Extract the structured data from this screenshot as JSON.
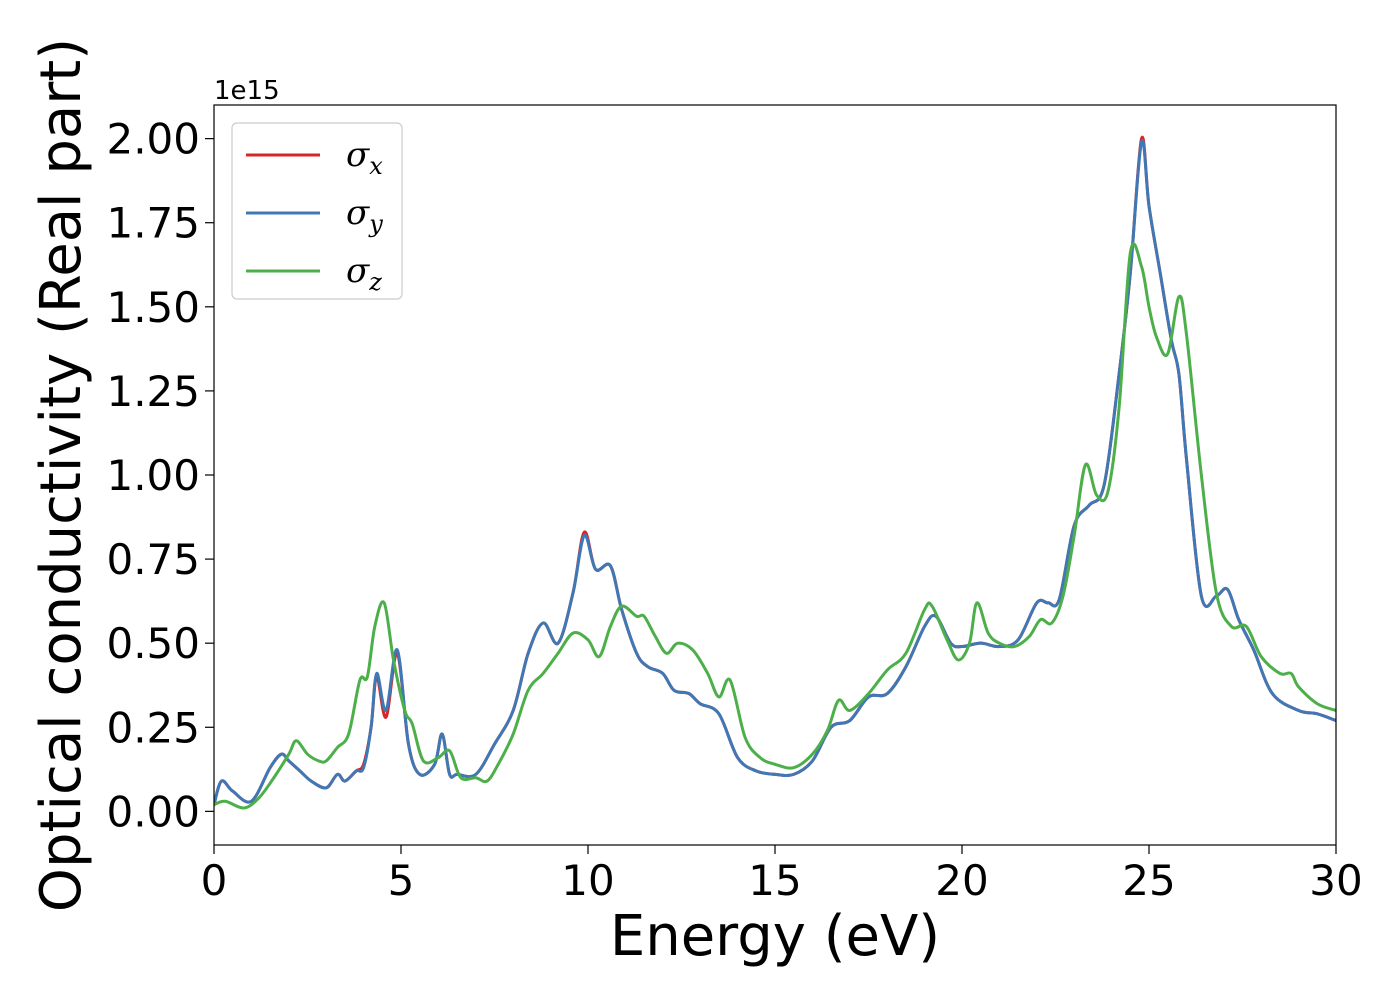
{
  "chart_data": {
    "type": "line",
    "title": "",
    "xlabel": "Energy (eV)",
    "ylabel": "Optical conductivity (Real part)",
    "y_offset_label": "1e15",
    "xlim": [
      0,
      30
    ],
    "ylim": [
      -0.1,
      2.1
    ],
    "x_ticks": [
      0,
      5,
      10,
      15,
      20,
      25,
      30
    ],
    "x_tick_labels": [
      "0",
      "5",
      "10",
      "15",
      "20",
      "25",
      "30"
    ],
    "y_ticks": [
      0,
      0.25,
      0.5,
      0.75,
      1.0,
      1.25,
      1.5,
      1.75,
      2.0
    ],
    "y_tick_labels": [
      "0.00",
      "0.25",
      "0.50",
      "0.75",
      "1.00",
      "1.25",
      "1.50",
      "1.75",
      "2.00"
    ],
    "grid": false,
    "legend_position": "top-left",
    "series": [
      {
        "name": "σx",
        "legend_symbol": "σ",
        "legend_subscript": "x",
        "color": "#d62728",
        "x": [
          0,
          0.2,
          0.5,
          1.0,
          1.5,
          1.8,
          2.0,
          2.3,
          2.6,
          3.0,
          3.3,
          3.5,
          3.8,
          4.0,
          4.2,
          4.35,
          4.6,
          4.9,
          5.2,
          5.5,
          5.9,
          6.1,
          6.3,
          6.5,
          7.0,
          7.5,
          8.0,
          8.4,
          8.8,
          9.2,
          9.6,
          9.9,
          10.2,
          10.6,
          10.9,
          11.3,
          11.6,
          12.0,
          12.3,
          12.7,
          13.0,
          13.5,
          14.0,
          14.5,
          15.0,
          15.5,
          16.0,
          16.5,
          17.0,
          17.5,
          18.0,
          18.5,
          19.0,
          19.3,
          19.7,
          20.0,
          20.5,
          21.0,
          21.5,
          22.0,
          22.3,
          22.6,
          23.0,
          23.4,
          23.8,
          24.2,
          24.5,
          24.8,
          25.0,
          25.3,
          25.6,
          25.8,
          26.0,
          26.4,
          26.8,
          27.1,
          27.4,
          27.8,
          28.3,
          29.0,
          29.5,
          30.0
        ],
        "values": [
          0.02,
          0.09,
          0.06,
          0.03,
          0.13,
          0.17,
          0.15,
          0.12,
          0.09,
          0.07,
          0.11,
          0.09,
          0.12,
          0.14,
          0.25,
          0.4,
          0.28,
          0.47,
          0.2,
          0.11,
          0.14,
          0.23,
          0.11,
          0.11,
          0.11,
          0.2,
          0.3,
          0.47,
          0.56,
          0.5,
          0.65,
          0.83,
          0.72,
          0.73,
          0.6,
          0.47,
          0.43,
          0.41,
          0.36,
          0.35,
          0.32,
          0.29,
          0.16,
          0.12,
          0.11,
          0.11,
          0.15,
          0.25,
          0.27,
          0.34,
          0.35,
          0.43,
          0.55,
          0.58,
          0.5,
          0.49,
          0.5,
          0.49,
          0.51,
          0.62,
          0.62,
          0.63,
          0.85,
          0.91,
          0.97,
          1.3,
          1.6,
          2.0,
          1.8,
          1.6,
          1.4,
          1.3,
          1.05,
          0.64,
          0.64,
          0.66,
          0.57,
          0.48,
          0.35,
          0.3,
          0.29,
          0.27
        ]
      },
      {
        "name": "σy",
        "legend_symbol": "σ",
        "legend_subscript": "y",
        "color": "#3f78b5",
        "x": [
          0,
          0.2,
          0.5,
          1.0,
          1.5,
          1.8,
          2.0,
          2.3,
          2.6,
          3.0,
          3.3,
          3.5,
          3.8,
          4.0,
          4.2,
          4.35,
          4.6,
          4.9,
          5.2,
          5.5,
          5.9,
          6.1,
          6.3,
          6.5,
          7.0,
          7.5,
          8.0,
          8.4,
          8.8,
          9.2,
          9.6,
          9.9,
          10.2,
          10.6,
          10.9,
          11.3,
          11.6,
          12.0,
          12.3,
          12.7,
          13.0,
          13.5,
          14.0,
          14.5,
          15.0,
          15.5,
          16.0,
          16.5,
          17.0,
          17.5,
          18.0,
          18.5,
          19.0,
          19.3,
          19.7,
          20.0,
          20.5,
          21.0,
          21.5,
          22.0,
          22.3,
          22.6,
          23.0,
          23.4,
          23.8,
          24.2,
          24.5,
          24.8,
          25.0,
          25.3,
          25.6,
          25.8,
          26.0,
          26.4,
          26.8,
          27.1,
          27.4,
          27.8,
          28.3,
          29.0,
          29.5,
          30.0
        ],
        "values": [
          0.02,
          0.09,
          0.06,
          0.03,
          0.13,
          0.17,
          0.15,
          0.12,
          0.09,
          0.07,
          0.11,
          0.09,
          0.12,
          0.13,
          0.25,
          0.41,
          0.3,
          0.48,
          0.2,
          0.11,
          0.14,
          0.23,
          0.11,
          0.11,
          0.11,
          0.2,
          0.3,
          0.47,
          0.56,
          0.5,
          0.65,
          0.82,
          0.72,
          0.73,
          0.6,
          0.47,
          0.43,
          0.41,
          0.36,
          0.35,
          0.32,
          0.29,
          0.16,
          0.12,
          0.11,
          0.11,
          0.15,
          0.25,
          0.27,
          0.34,
          0.35,
          0.43,
          0.55,
          0.58,
          0.5,
          0.49,
          0.5,
          0.49,
          0.51,
          0.62,
          0.62,
          0.63,
          0.85,
          0.91,
          0.97,
          1.3,
          1.6,
          1.99,
          1.8,
          1.6,
          1.4,
          1.3,
          1.05,
          0.64,
          0.64,
          0.66,
          0.57,
          0.48,
          0.35,
          0.3,
          0.29,
          0.27
        ]
      },
      {
        "name": "σz",
        "legend_symbol": "σ",
        "legend_subscript": "z",
        "color": "#4daf4a",
        "x": [
          0,
          0.3,
          0.8,
          1.2,
          1.6,
          2.0,
          2.2,
          2.5,
          2.8,
          3.0,
          3.3,
          3.6,
          3.9,
          4.1,
          4.3,
          4.55,
          4.8,
          5.1,
          5.3,
          5.6,
          6.0,
          6.3,
          6.6,
          7.0,
          7.3,
          7.6,
          8.0,
          8.4,
          8.8,
          9.2,
          9.6,
          10.0,
          10.3,
          10.6,
          10.9,
          11.3,
          11.5,
          11.8,
          12.1,
          12.4,
          12.8,
          13.2,
          13.5,
          13.8,
          14.2,
          14.6,
          15.0,
          15.5,
          16.0,
          16.4,
          16.7,
          17.0,
          17.5,
          18.0,
          18.5,
          19.0,
          19.2,
          19.6,
          19.9,
          20.2,
          20.4,
          20.7,
          21.0,
          21.4,
          21.8,
          22.1,
          22.4,
          22.7,
          23.0,
          23.3,
          23.6,
          23.9,
          24.2,
          24.5,
          24.8,
          25.0,
          25.2,
          25.5,
          25.8,
          26.0,
          26.4,
          26.8,
          27.2,
          27.6,
          28.0,
          28.5,
          28.8,
          29.0,
          29.5,
          30.0
        ],
        "values": [
          0.02,
          0.03,
          0.01,
          0.04,
          0.1,
          0.17,
          0.21,
          0.17,
          0.15,
          0.15,
          0.19,
          0.23,
          0.39,
          0.4,
          0.55,
          0.62,
          0.45,
          0.3,
          0.26,
          0.15,
          0.16,
          0.18,
          0.1,
          0.1,
          0.09,
          0.14,
          0.23,
          0.36,
          0.41,
          0.47,
          0.53,
          0.51,
          0.46,
          0.55,
          0.61,
          0.58,
          0.58,
          0.52,
          0.47,
          0.5,
          0.48,
          0.41,
          0.34,
          0.39,
          0.22,
          0.16,
          0.14,
          0.13,
          0.17,
          0.24,
          0.33,
          0.3,
          0.35,
          0.42,
          0.47,
          0.6,
          0.61,
          0.51,
          0.45,
          0.5,
          0.62,
          0.53,
          0.5,
          0.49,
          0.52,
          0.57,
          0.56,
          0.64,
          0.82,
          1.03,
          0.94,
          0.95,
          1.2,
          1.66,
          1.62,
          1.5,
          1.41,
          1.36,
          1.53,
          1.42,
          1.0,
          0.65,
          0.55,
          0.55,
          0.46,
          0.41,
          0.41,
          0.37,
          0.32,
          0.3
        ]
      }
    ]
  }
}
